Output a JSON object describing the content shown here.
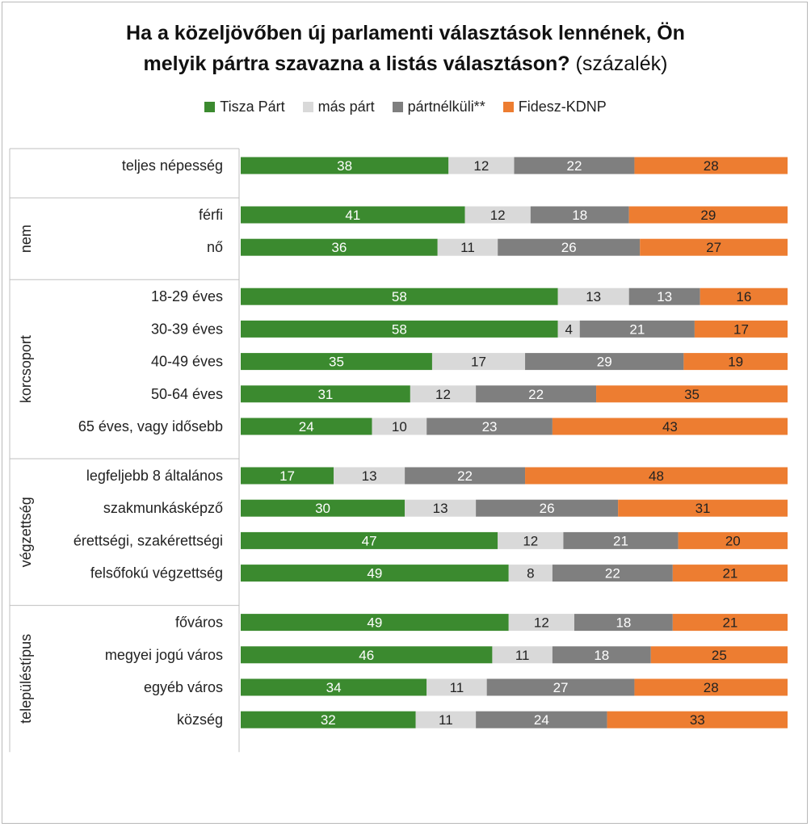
{
  "chart_data": {
    "type": "bar",
    "stacked": true,
    "orientation": "horizontal",
    "title": "Ha a közeljövőben új parlamenti választások lennének, Ön melyik pártra szavazna a listás választáson?",
    "title_line1": "Ha a közeljövőben új parlamenti választások lennének, Ön",
    "title_line2": "melyik pártra szavazna a listás választáson?",
    "subtitle": "(százalék)",
    "legend_position": "top",
    "series": [
      {
        "name": "Tisza Párt",
        "color": "#3b8a2f"
      },
      {
        "name": "más párt",
        "color": "#d9d9d9"
      },
      {
        "name": "pártnélküli**",
        "color": "#7f7f7f"
      },
      {
        "name": "Fidesz-KDNP",
        "color": "#ed7d31"
      }
    ],
    "groups": [
      {
        "label": "",
        "rows": [
          {
            "label": "teljes népesség",
            "values": [
              38,
              12,
              22,
              28
            ]
          }
        ]
      },
      {
        "label": "nem",
        "rows": [
          {
            "label": "férfi",
            "values": [
              41,
              12,
              18,
              29
            ]
          },
          {
            "label": "nő",
            "values": [
              36,
              11,
              26,
              27
            ]
          }
        ]
      },
      {
        "label": "korcsoport",
        "rows": [
          {
            "label": "18-29 éves",
            "values": [
              58,
              13,
              13,
              16
            ]
          },
          {
            "label": "30-39 éves",
            "values": [
              58,
              4,
              21,
              17
            ]
          },
          {
            "label": "40-49 éves",
            "values": [
              35,
              17,
              29,
              19
            ]
          },
          {
            "label": "50-64 éves",
            "values": [
              31,
              12,
              22,
              35
            ]
          },
          {
            "label": "65 éves, vagy idősebb",
            "values": [
              24,
              10,
              23,
              43
            ]
          }
        ]
      },
      {
        "label": "végzettség",
        "rows": [
          {
            "label": "legfeljebb 8 általános",
            "values": [
              17,
              13,
              22,
              48
            ]
          },
          {
            "label": "szakmunkásképző",
            "values": [
              30,
              13,
              26,
              31
            ]
          },
          {
            "label": "érettségi, szakérettségi",
            "values": [
              47,
              12,
              21,
              20
            ]
          },
          {
            "label": "felsőfokú végzettség",
            "values": [
              49,
              8,
              22,
              21
            ]
          }
        ]
      },
      {
        "label": "településtípus",
        "rows": [
          {
            "label": "főváros",
            "values": [
              49,
              12,
              18,
              21
            ]
          },
          {
            "label": "megyei jogú város",
            "values": [
              46,
              11,
              18,
              25
            ]
          },
          {
            "label": "egyéb város",
            "values": [
              34,
              11,
              27,
              28
            ]
          },
          {
            "label": "község",
            "values": [
              32,
              11,
              24,
              33
            ]
          }
        ]
      }
    ]
  }
}
